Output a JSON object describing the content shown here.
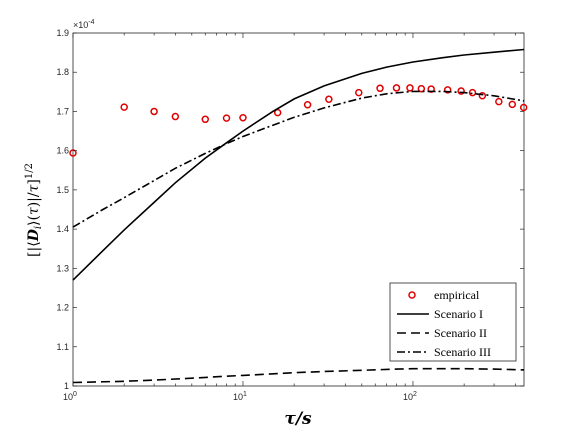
{
  "chart_data": {
    "type": "line",
    "xlabel": "τ/s",
    "ylabel": "[|⟨Dᵢ⟩(τ)|/τ]^1/2",
    "x_scale": "log",
    "xlim": [
      1,
      450
    ],
    "ylim": [
      1.0,
      1.9
    ],
    "y_multiplier": "×10^-4",
    "x_ticks": [
      1,
      10,
      100
    ],
    "x_tick_labels": [
      "10^0",
      "10^1",
      "10^2"
    ],
    "y_ticks": [
      1.0,
      1.1,
      1.2,
      1.3,
      1.4,
      1.5,
      1.6,
      1.7,
      1.8,
      1.9
    ],
    "y_tick_labels": [
      "1",
      "1.1",
      "1.2",
      "1.3",
      "1.4",
      "1.5",
      "1.6",
      "1.7",
      "1.8",
      "1.9"
    ],
    "legend_position": "bottom-right",
    "series": [
      {
        "name": "empirical",
        "style": "marker",
        "color": "#e00000",
        "x": [
          1,
          2,
          3,
          4,
          6,
          8,
          10,
          16,
          24,
          32,
          48,
          64,
          80,
          96,
          112,
          128,
          160,
          192,
          224,
          256,
          320,
          384,
          448
        ],
        "y": [
          1.594,
          1.711,
          1.7,
          1.687,
          1.68,
          1.683,
          1.684,
          1.697,
          1.717,
          1.731,
          1.748,
          1.759,
          1.76,
          1.76,
          1.758,
          1.757,
          1.755,
          1.752,
          1.748,
          1.74,
          1.725,
          1.718,
          1.71
        ]
      },
      {
        "name": "Scenario I",
        "style": "solid",
        "color": "#000000",
        "x": [
          1,
          1.5,
          2,
          3,
          4,
          6,
          8,
          10,
          15,
          20,
          30,
          50,
          70,
          100,
          150,
          200,
          300,
          450
        ],
        "y": [
          1.27,
          1.345,
          1.398,
          1.468,
          1.518,
          1.581,
          1.62,
          1.65,
          1.7,
          1.732,
          1.765,
          1.797,
          1.813,
          1.826,
          1.837,
          1.844,
          1.851,
          1.858
        ]
      },
      {
        "name": "Scenario II",
        "style": "dashed",
        "color": "#000000",
        "x": [
          1,
          2,
          3,
          5,
          8,
          10,
          20,
          30,
          50,
          80,
          100,
          150,
          200,
          300,
          450
        ],
        "y": [
          1.009,
          1.012,
          1.015,
          1.02,
          1.025,
          1.027,
          1.034,
          1.037,
          1.04,
          1.043,
          1.044,
          1.044,
          1.044,
          1.043,
          1.041
        ]
      },
      {
        "name": "Scenario III",
        "style": "dashdot",
        "color": "#000000",
        "x": [
          1,
          1.5,
          2,
          3,
          4,
          6,
          8,
          10,
          15,
          20,
          30,
          50,
          70,
          100,
          150,
          200,
          300,
          450
        ],
        "y": [
          1.405,
          1.45,
          1.48,
          1.524,
          1.555,
          1.593,
          1.618,
          1.636,
          1.665,
          1.685,
          1.709,
          1.734,
          1.745,
          1.751,
          1.751,
          1.748,
          1.74,
          1.727
        ]
      }
    ]
  }
}
